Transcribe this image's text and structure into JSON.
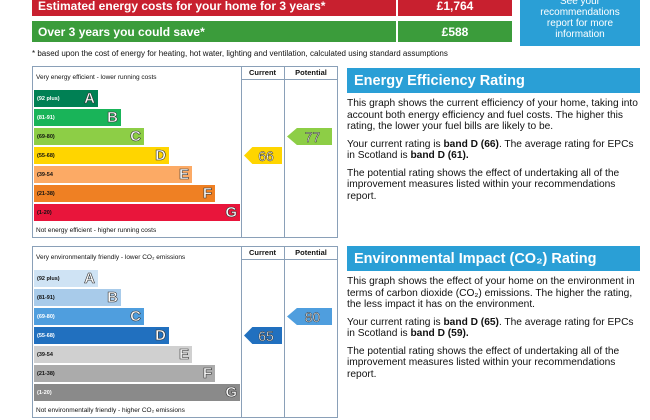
{
  "costs": {
    "rows": [
      {
        "label": "Estimated energy costs for your home for 3 years*",
        "value": "£1,764"
      },
      {
        "label": "Over 3 years you could save*",
        "value": "£588"
      }
    ],
    "note": "See your recommendations report for more information",
    "footnote": "* based upon the cost of energy for heating, hot water, lighting and ventilation, calculated using standard assumptions"
  },
  "energy": {
    "headers": [
      "Current",
      "Potential"
    ],
    "top_label": "Very energy efficient - lower running costs",
    "bottom_label": "Not energy efficient - higher running costs",
    "bands": [
      {
        "range": "(92 plus)",
        "letter": "A"
      },
      {
        "range": "(81-91)",
        "letter": "B"
      },
      {
        "range": "(69-80)",
        "letter": "C"
      },
      {
        "range": "(55-68)",
        "letter": "D"
      },
      {
        "range": "(39-54",
        "letter": "E"
      },
      {
        "range": "(21-38)",
        "letter": "F"
      },
      {
        "range": "(1-20)",
        "letter": "G"
      }
    ],
    "current": 66,
    "potential": 77,
    "title": "Energy Efficiency Rating",
    "paragraphs": [
      [
        {
          "text": "This graph shows the current efficiency of your home, taking into account both energy efficiency and fuel costs. The higher this rating, the lower your fuel bills are likely to be."
        }
      ],
      [
        {
          "text": "Your current rating is "
        },
        {
          "text": "band D (66)",
          "bold": true
        },
        {
          "text": ". The average rating for EPCs in Scotland is "
        },
        {
          "text": "band D (61).",
          "bold": true
        }
      ],
      [
        {
          "text": "The potential rating shows the effect of undertaking all of the improvement measures listed within your recommendations report."
        }
      ]
    ]
  },
  "environment": {
    "headers": [
      "Current",
      "Potential"
    ],
    "top_label": "Very environmentally friendly - lower CO₂ emissions",
    "bottom_label": "Not environmentally friendly - higher CO₂ emissions",
    "bands": [
      {
        "range": "(92 plus)",
        "letter": "A"
      },
      {
        "range": "(81-91)",
        "letter": "B"
      },
      {
        "range": "(69-80)",
        "letter": "C"
      },
      {
        "range": "(55-68)",
        "letter": "D"
      },
      {
        "range": "(39-54",
        "letter": "E"
      },
      {
        "range": "(21-38)",
        "letter": "F"
      },
      {
        "range": "(1-20)",
        "letter": "G"
      }
    ],
    "current": 65,
    "potential": 80,
    "title": "Environmental Impact (CO₂) Rating",
    "paragraphs": [
      [
        {
          "text": "This graph shows the effect of your home on the environment in terms of carbon dioxide (CO₂) emissions. The higher the rating, the less impact it has on the environment."
        }
      ],
      [
        {
          "text": "Your current rating is "
        },
        {
          "text": "band D (65)",
          "bold": true
        },
        {
          "text": ". The average rating for EPCs in Scotland is "
        },
        {
          "text": "band D (59).",
          "bold": true
        }
      ],
      [
        {
          "text": "The potential rating shows the effect of undertaking all of the improvement measures listed within your recommendations report."
        }
      ]
    ]
  }
}
